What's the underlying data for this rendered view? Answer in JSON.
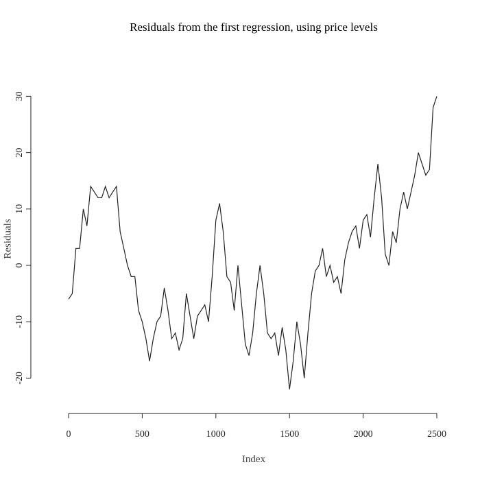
{
  "chart_data": {
    "type": "line",
    "title": "Residuals from the first regression, using price levels",
    "xlabel": "Index",
    "ylabel": "Residuals",
    "xlim": [
      0,
      2500
    ],
    "ylim": [
      -25,
      35
    ],
    "xticks": [
      0,
      500,
      1000,
      1500,
      2000,
      2500
    ],
    "yticks": [
      -20,
      -10,
      0,
      10,
      20,
      30
    ],
    "grid": false,
    "line_color": "#222222",
    "x": [
      0,
      25,
      50,
      75,
      100,
      125,
      150,
      175,
      200,
      225,
      250,
      275,
      300,
      325,
      350,
      375,
      400,
      425,
      450,
      475,
      500,
      525,
      550,
      575,
      600,
      625,
      650,
      675,
      700,
      725,
      750,
      775,
      800,
      825,
      850,
      875,
      900,
      925,
      950,
      975,
      1000,
      1025,
      1050,
      1075,
      1100,
      1125,
      1150,
      1175,
      1200,
      1225,
      1250,
      1275,
      1300,
      1325,
      1350,
      1375,
      1400,
      1425,
      1450,
      1475,
      1500,
      1525,
      1550,
      1575,
      1600,
      1625,
      1650,
      1675,
      1700,
      1725,
      1750,
      1775,
      1800,
      1825,
      1850,
      1875,
      1900,
      1925,
      1950,
      1975,
      2000,
      2025,
      2050,
      2075,
      2100,
      2125,
      2150,
      2175,
      2200,
      2225,
      2250,
      2275,
      2300,
      2325,
      2350,
      2375,
      2400,
      2425,
      2450,
      2475,
      2500
    ],
    "values": [
      -6,
      -5,
      3,
      3,
      10,
      7,
      14,
      13,
      12,
      12,
      14,
      12,
      13,
      14,
      6,
      3,
      0,
      -2,
      -2,
      -8,
      -10,
      -13,
      -17,
      -13,
      -10,
      -9,
      -4,
      -8,
      -13,
      -12,
      -15,
      -13,
      -5,
      -9,
      -13,
      -9,
      -8,
      -7,
      -10,
      -2,
      8,
      11,
      6,
      -2,
      -3,
      -8,
      0,
      -7,
      -14,
      -16,
      -12,
      -5,
      0,
      -5,
      -12,
      -13,
      -12,
      -16,
      -11,
      -15,
      -22,
      -17,
      -10,
      -14,
      -20,
      -12,
      -5,
      -1,
      0,
      3,
      -2,
      0,
      -3,
      -2,
      -5,
      1,
      4,
      6,
      7,
      3,
      8,
      9,
      5,
      12,
      18,
      12,
      2,
      0,
      6,
      4,
      10,
      13,
      10,
      13,
      16,
      20,
      18,
      16,
      17,
      28,
      30
    ]
  }
}
